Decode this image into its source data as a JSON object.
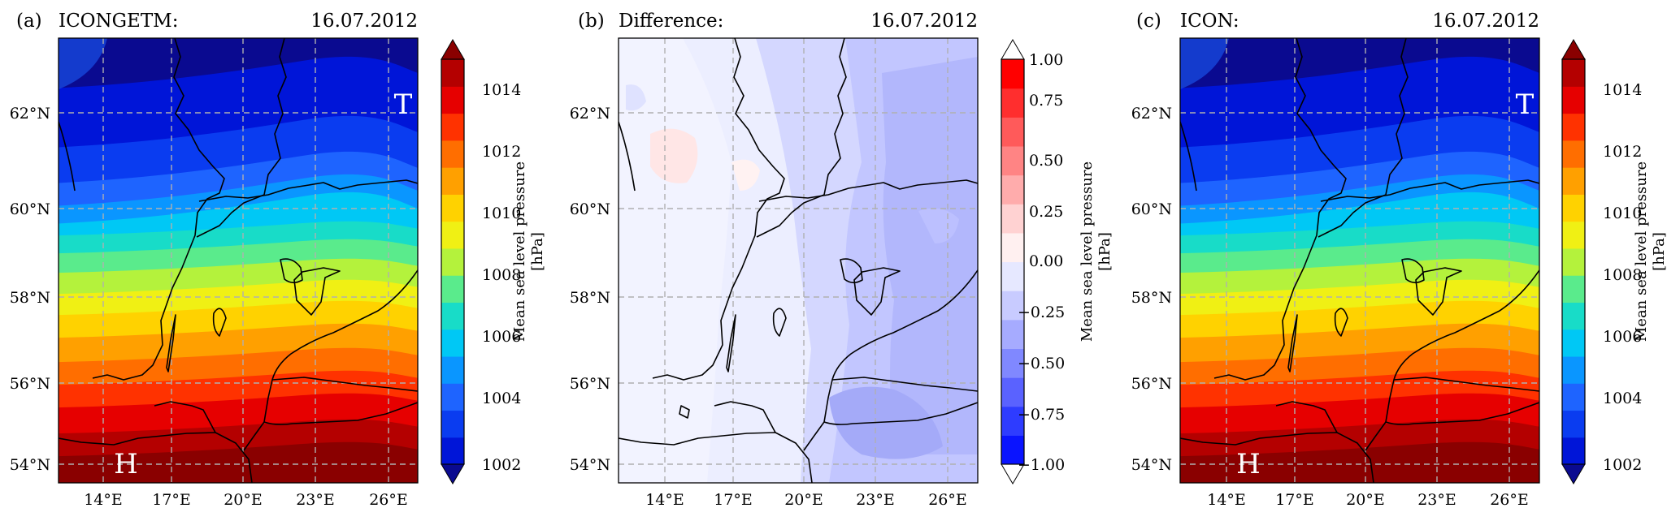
{
  "colors": {
    "pressure_scale": [
      "#0a0a90",
      "#0015d8",
      "#0a3cf0",
      "#1e64ff",
      "#0a96ff",
      "#00c8f5",
      "#18dcc8",
      "#5aeb8c",
      "#b4f23c",
      "#f0f014",
      "#ffd200",
      "#ffa000",
      "#ff6e00",
      "#ff3200",
      "#e60000",
      "#b40000",
      "#8a0000"
    ],
    "difference_scale": [
      "#0a14ff",
      "#2e3cff",
      "#5a62ff",
      "#8088ff",
      "#a6abff",
      "#c8cbff",
      "#e6e8ff",
      "#fff0f0",
      "#ffd2d2",
      "#ffacac",
      "#ff8484",
      "#ff5a5a",
      "#ff2e2e",
      "#ff0000"
    ]
  },
  "panels": [
    {
      "label": "(a)",
      "title": "ICONGETM:",
      "date": "16.07.2012",
      "type": "pressure",
      "high_marker": "H",
      "low_marker": "T",
      "colorbar": {
        "label_line1": "Mean sea level pressure",
        "label_line2": "[hPa]",
        "ticks": [
          "1014",
          "1012",
          "1010",
          "1008",
          "1006",
          "1004",
          "1002"
        ]
      }
    },
    {
      "label": "(b)",
      "title": "Difference:",
      "date": "16.07.2012",
      "type": "difference",
      "colorbar": {
        "label_line1": "Mean sea level pressure",
        "label_line2": "[hPa]",
        "ticks": [
          "1.00",
          "0.75",
          "0.50",
          "0.25",
          "0.00",
          "−0.25",
          "−0.50",
          "−0.75",
          "−1.00"
        ]
      }
    },
    {
      "label": "(c)",
      "title": "ICON:",
      "date": "16.07.2012",
      "type": "pressure",
      "high_marker": "H",
      "low_marker": "T",
      "colorbar": {
        "label_line1": "Mean sea level pressure",
        "label_line2": "[hPa]",
        "ticks": [
          "1014",
          "1012",
          "1010",
          "1008",
          "1006",
          "1004",
          "1002"
        ]
      }
    }
  ],
  "lat_ticks": [
    "62°N",
    "60°N",
    "58°N",
    "56°N",
    "54°N"
  ],
  "lon_ticks": [
    "14°E",
    "17°E",
    "20°E",
    "23°E",
    "26°E"
  ]
}
